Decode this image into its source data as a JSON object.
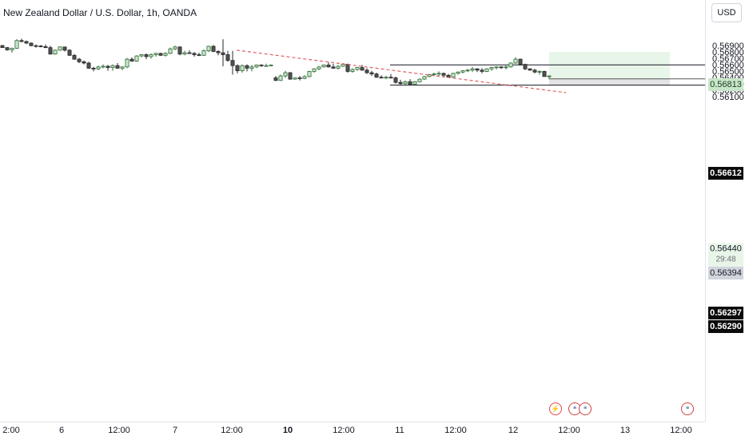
{
  "header": {
    "title": "New Zealand Dollar / U.S. Dollar, 1h, OANDA",
    "currency": "USD"
  },
  "price_axis": {
    "ticks": [
      "0.56900",
      "0.56800",
      "0.56700",
      "0.56600",
      "0.56500",
      "0.56400",
      "0.56300",
      "0.56200",
      "0.56100"
    ]
  },
  "price_tags": {
    "take_profit": "0.56813",
    "resistance": "0.56612",
    "current_price": "0.56440",
    "countdown": "29:48",
    "entry": "0.56394",
    "support": "0.56297",
    "stop_loss": "0.56290"
  },
  "time_axis": {
    "labels": [
      "2:00",
      "6",
      "12:00",
      "7",
      "12:00",
      "10",
      "12:00",
      "11",
      "12:00",
      "12",
      "12:00",
      "13",
      "12:00"
    ]
  },
  "events": [
    {
      "name": "economic-event-flash-icon",
      "kind": "flash",
      "glyph": "⚡"
    },
    {
      "name": "economic-event-flag-icon",
      "kind": "flag",
      "glyph": "≡"
    },
    {
      "name": "economic-event-flag-icon",
      "kind": "flag",
      "glyph": "≡"
    },
    {
      "name": "economic-event-flag-icon",
      "kind": "flag",
      "glyph": "≡"
    }
  ],
  "colors": {
    "up_body": "#c8e6c9",
    "up_border": "#2e6b34",
    "down_body": "#505050",
    "down_border": "#2a2a2a",
    "trendline": "#e06060",
    "level_line": "#131722",
    "target_zone": "#e8f5e9",
    "stop_zone": "#e3e3e3"
  },
  "chart_data": {
    "type": "candlestick",
    "symbol": "NZDUSD",
    "interval": "1h",
    "ylim": [
      0.5607,
      0.5702
    ],
    "y_ticks": [
      0.569,
      0.568,
      0.567,
      0.566,
      0.565,
      0.564,
      0.563,
      0.562,
      0.561
    ],
    "series": [
      {
        "values": [
          [
            0.56912,
            0.5692,
            0.56875,
            0.5688
          ],
          [
            0.5688,
            0.5689,
            0.5683,
            0.56845
          ],
          [
            0.56845,
            0.5688,
            0.568,
            0.5687
          ],
          [
            0.5687,
            0.5701,
            0.5686,
            0.5699
          ],
          [
            0.5699,
            0.5702,
            0.5696,
            0.56975
          ],
          [
            0.56975,
            0.5699,
            0.56935,
            0.5695
          ],
          [
            0.5695,
            0.5696,
            0.569,
            0.5691
          ],
          [
            0.5691,
            0.5693,
            0.5688,
            0.56905
          ],
          [
            0.56905,
            0.5692,
            0.56885,
            0.56895
          ],
          [
            0.56895,
            0.5693,
            0.5687,
            0.5688
          ],
          [
            0.5688,
            0.5691,
            0.5677,
            0.5678
          ],
          [
            0.5678,
            0.5685,
            0.5677,
            0.5684
          ],
          [
            0.5684,
            0.569,
            0.5683,
            0.5689
          ],
          [
            0.5689,
            0.56895,
            0.5682,
            0.5684
          ],
          [
            0.5684,
            0.56855,
            0.5675,
            0.5676
          ],
          [
            0.5676,
            0.5678,
            0.5669,
            0.567
          ],
          [
            0.567,
            0.5672,
            0.5664,
            0.5666
          ],
          [
            0.5666,
            0.5668,
            0.5662,
            0.5664
          ],
          [
            0.5664,
            0.5666,
            0.5655,
            0.5656
          ],
          [
            0.5656,
            0.5658,
            0.5651,
            0.5655
          ],
          [
            0.5655,
            0.566,
            0.5653,
            0.5658
          ],
          [
            0.5658,
            0.5662,
            0.5656,
            0.5659
          ],
          [
            0.5659,
            0.5661,
            0.5652,
            0.5657
          ],
          [
            0.5657,
            0.5662,
            0.5652,
            0.566
          ],
          [
            0.566,
            0.5664,
            0.5655,
            0.5656
          ],
          [
            0.5656,
            0.5659,
            0.5653,
            0.5658
          ],
          [
            0.5658,
            0.5672,
            0.5656,
            0.567
          ],
          [
            0.567,
            0.5673,
            0.5666,
            0.5667
          ],
          [
            0.5667,
            0.5676,
            0.5666,
            0.5675
          ],
          [
            0.5675,
            0.5678,
            0.5673,
            0.5677
          ],
          [
            0.5677,
            0.5679,
            0.567,
            0.5674
          ],
          [
            0.5674,
            0.5679,
            0.5671,
            0.5677
          ],
          [
            0.5677,
            0.568,
            0.5674,
            0.5679
          ],
          [
            0.5679,
            0.568,
            0.5675,
            0.5676
          ],
          [
            0.5676,
            0.5681,
            0.5674,
            0.5679
          ],
          [
            0.5679,
            0.5688,
            0.5678,
            0.5686
          ],
          [
            0.5686,
            0.5691,
            0.5684,
            0.5689
          ],
          [
            0.5689,
            0.569,
            0.5676,
            0.5678
          ],
          [
            0.5678,
            0.5683,
            0.5676,
            0.568
          ],
          [
            0.568,
            0.5684,
            0.5678,
            0.5679
          ],
          [
            0.5679,
            0.5681,
            0.5674,
            0.5677
          ],
          [
            0.5677,
            0.568,
            0.5675,
            0.5676
          ],
          [
            0.5676,
            0.5685,
            0.5675,
            0.5683
          ],
          [
            0.5683,
            0.5691,
            0.5681,
            0.569
          ],
          [
            0.569,
            0.5692,
            0.5681,
            0.5682
          ],
          [
            0.5682,
            0.5684,
            0.5676,
            0.568
          ],
          [
            0.568,
            0.5701,
            0.5659,
            0.5677
          ],
          [
            0.5677,
            0.5683,
            0.5666,
            0.5668
          ],
          [
            0.5668,
            0.5683,
            0.5646,
            0.566
          ],
          [
            0.566,
            0.5662,
            0.5648,
            0.5652
          ],
          [
            0.5652,
            0.5662,
            0.5649,
            0.566
          ],
          [
            0.566,
            0.5662,
            0.5651,
            0.5656
          ],
          [
            0.5656,
            0.5661,
            0.5651,
            0.5658
          ],
          [
            0.5658,
            0.5662,
            0.5656,
            0.5661
          ],
          [
            0.5661,
            0.5662,
            0.5658,
            0.566
          ],
          [
            0.566,
            0.5663,
            0.5659,
            0.566
          ],
          [
            0.566,
            0.5662,
            0.5659,
            0.5661
          ],
          [
            0.5641,
            0.5644,
            0.5636,
            0.5637
          ],
          [
            0.5637,
            0.5646,
            0.5636,
            0.5644
          ],
          [
            0.5644,
            0.5652,
            0.5641,
            0.5649
          ],
          [
            0.5649,
            0.565,
            0.5638,
            0.5639
          ],
          [
            0.5639,
            0.5642,
            0.5638,
            0.5641
          ],
          [
            0.5641,
            0.5644,
            0.5637,
            0.564
          ],
          [
            0.564,
            0.5645,
            0.5639,
            0.5643
          ],
          [
            0.5643,
            0.5652,
            0.5642,
            0.5651
          ],
          [
            0.5651,
            0.5656,
            0.5649,
            0.5655
          ],
          [
            0.5655,
            0.5659,
            0.5653,
            0.5658
          ],
          [
            0.5658,
            0.5662,
            0.5657,
            0.5661
          ],
          [
            0.5661,
            0.5665,
            0.5657,
            0.5658
          ],
          [
            0.5658,
            0.5663,
            0.5655,
            0.5656
          ],
          [
            0.5656,
            0.5661,
            0.5654,
            0.5659
          ],
          [
            0.5659,
            0.5664,
            0.5658,
            0.5662
          ],
          [
            0.5662,
            0.5663,
            0.5649,
            0.5651
          ],
          [
            0.5651,
            0.5656,
            0.5649,
            0.5654
          ],
          [
            0.5654,
            0.5658,
            0.5652,
            0.5657
          ],
          [
            0.5657,
            0.5661,
            0.5652,
            0.5653
          ],
          [
            0.5653,
            0.5656,
            0.5647,
            0.5649
          ],
          [
            0.5649,
            0.5652,
            0.5644,
            0.5647
          ],
          [
            0.5647,
            0.5649,
            0.5641,
            0.5642
          ],
          [
            0.5642,
            0.5645,
            0.564,
            0.5641
          ],
          [
            0.5641,
            0.5644,
            0.5639,
            0.5642
          ],
          [
            0.5642,
            0.5647,
            0.564,
            0.5641
          ],
          [
            0.5641,
            0.5643,
            0.5632,
            0.5634
          ],
          [
            0.5634,
            0.5638,
            0.563,
            0.5632
          ],
          [
            0.5632,
            0.5637,
            0.563,
            0.5635
          ],
          [
            0.5635,
            0.5639,
            0.563,
            0.5631
          ],
          [
            0.5631,
            0.5636,
            0.563,
            0.5635
          ],
          [
            0.5635,
            0.564,
            0.5634,
            0.5639
          ],
          [
            0.5639,
            0.5644,
            0.5638,
            0.5643
          ],
          [
            0.5643,
            0.5647,
            0.5642,
            0.5646
          ],
          [
            0.5646,
            0.5649,
            0.5644,
            0.5647
          ],
          [
            0.5647,
            0.5651,
            0.5644,
            0.5648
          ],
          [
            0.5648,
            0.5649,
            0.5643,
            0.5645
          ],
          [
            0.5645,
            0.5647,
            0.5641,
            0.5642
          ],
          [
            0.5642,
            0.5649,
            0.5641,
            0.5648
          ],
          [
            0.5648,
            0.5651,
            0.5646,
            0.565
          ],
          [
            0.565,
            0.5653,
            0.5648,
            0.5652
          ],
          [
            0.5652,
            0.5655,
            0.565,
            0.5653
          ],
          [
            0.5653,
            0.5658,
            0.565,
            0.5655
          ],
          [
            0.5655,
            0.5656,
            0.565,
            0.5653
          ],
          [
            0.5653,
            0.5656,
            0.5648,
            0.5651
          ],
          [
            0.5651,
            0.5656,
            0.565,
            0.5655
          ],
          [
            0.5655,
            0.5658,
            0.5652,
            0.5657
          ],
          [
            0.5657,
            0.5659,
            0.5654,
            0.5658
          ],
          [
            0.5658,
            0.5659,
            0.5655,
            0.5657
          ],
          [
            0.5657,
            0.566,
            0.5654,
            0.5658
          ],
          [
            0.5658,
            0.5665,
            0.5657,
            0.5664
          ],
          [
            0.5664,
            0.5673,
            0.5663,
            0.567
          ],
          [
            0.567,
            0.5671,
            0.566,
            0.5662
          ],
          [
            0.5662,
            0.5663,
            0.5653,
            0.5655
          ],
          [
            0.5655,
            0.5656,
            0.5652,
            0.5653
          ],
          [
            0.5653,
            0.5655,
            0.5648,
            0.565
          ],
          [
            0.565,
            0.5653,
            0.5646,
            0.5651
          ],
          [
            0.5651,
            0.5652,
            0.5643,
            0.5643
          ],
          [
            0.5643,
            0.5645,
            0.5639,
            0.5644
          ]
        ]
      }
    ],
    "annotations": {
      "trendline": {
        "from_price": 0.5684,
        "to_price": 0.5618
      },
      "resistance_level": 0.56612,
      "support_level": 0.56297,
      "long_position": {
        "entry": 0.56394,
        "take_profit": 0.56813,
        "stop_loss": 0.5629
      }
    }
  }
}
